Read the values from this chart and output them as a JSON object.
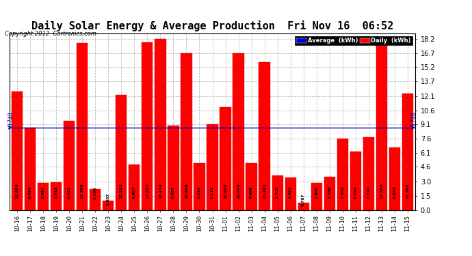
{
  "title": "Daily Solar Energy & Average Production  Fri Nov 16  06:52",
  "copyright": "Copyright 2012  Cartronics.com",
  "categories": [
    "10-16",
    "10-17",
    "10-18",
    "10-19",
    "10-20",
    "10-21",
    "10-22",
    "10-23",
    "10-24",
    "10-25",
    "10-26",
    "10-27",
    "10-28",
    "10-29",
    "10-30",
    "10-31",
    "11-01",
    "11-02",
    "11-03",
    "11-04",
    "11-05",
    "11-06",
    "11-07",
    "11-08",
    "11-09",
    "11-10",
    "11-11",
    "11-12",
    "11-13",
    "11-14",
    "11-15"
  ],
  "values": [
    12.604,
    8.764,
    2.891,
    2.913,
    9.452,
    17.798,
    2.19,
    1.007,
    12.225,
    4.807,
    17.857,
    18.214,
    8.985,
    16.649,
    5.01,
    9.112,
    10.954,
    16.644,
    4.966,
    15.761,
    3.703,
    3.451,
    0.767,
    2.866,
    3.556,
    7.564,
    6.194,
    7.748,
    17.554,
    6.654,
    12.392
  ],
  "average": 8.748,
  "bar_color": "#ff0000",
  "average_line_color": "#0000bb",
  "background_color": "#ffffff",
  "plot_bg_color": "#ffffff",
  "grid_color": "#bbbbbb",
  "yticks": [
    0.0,
    1.5,
    3.0,
    4.6,
    6.1,
    7.6,
    9.1,
    10.6,
    12.1,
    13.7,
    15.2,
    16.7,
    18.2
  ],
  "ylim": [
    0,
    18.8
  ],
  "title_fontsize": 11,
  "legend_avg_label": "Average  (kWh)",
  "legend_daily_label": "Daily  (kWh)",
  "legend_avg_color": "#0000cc",
  "legend_daily_color": "#ff0000",
  "avg_label": "8.748"
}
